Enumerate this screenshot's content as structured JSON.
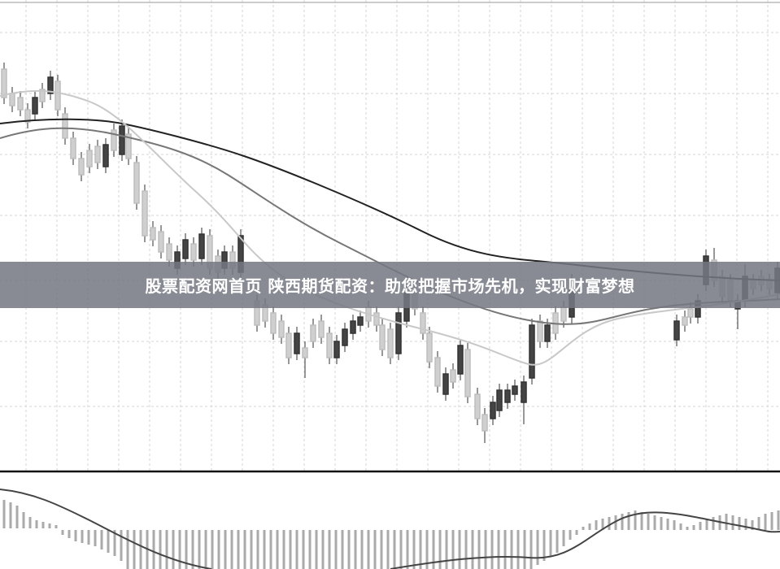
{
  "banner": {
    "title": "股票配资网首页 陕西期货配资：助您把握市场先机，实现财富梦想"
  }
}
